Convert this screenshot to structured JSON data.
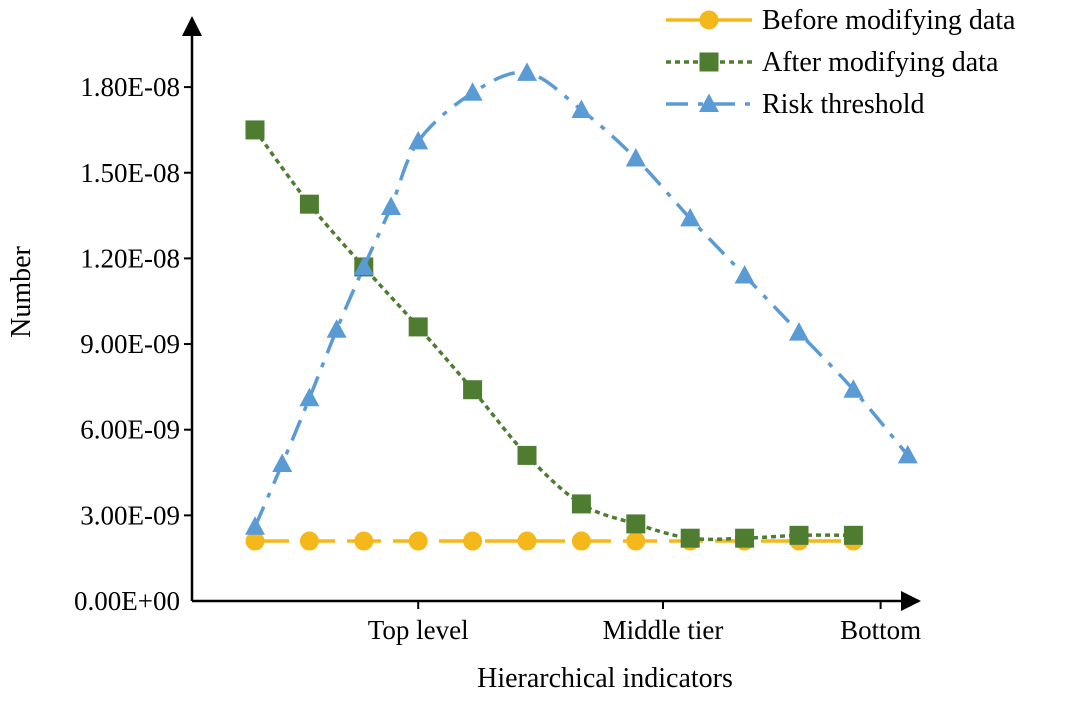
{
  "chart_data": {
    "type": "line",
    "xlabel": "Hierarchical indicators",
    "ylabel": "Number",
    "ylim": [
      0,
      2e-08
    ],
    "yticks": [
      {
        "value": 0,
        "label": "0.00E+00"
      },
      {
        "value": 3e-09,
        "label": "3.00E-09"
      },
      {
        "value": 6e-09,
        "label": "6.00E-09"
      },
      {
        "value": 9e-09,
        "label": "9.00E-09"
      },
      {
        "value": 1.2e-08,
        "label": "1.20E-08"
      },
      {
        "value": 1.5e-08,
        "label": "1.50E-08"
      },
      {
        "value": 1.8e-08,
        "label": "1.80E-08"
      }
    ],
    "xticks": [
      {
        "position": 3,
        "label": "Top level"
      },
      {
        "position": 7.5,
        "label": "Middle tier"
      },
      {
        "position": 11.5,
        "label": "Bottom"
      }
    ],
    "xlim": [
      -1,
      14
    ],
    "grid": false,
    "legend": "top-right",
    "series": [
      {
        "name": "Before modifying data",
        "color": "#F5B81A",
        "marker": "circle",
        "dash": "solid",
        "x": [
          0,
          1,
          2,
          3,
          4,
          5,
          6,
          7,
          8,
          9,
          10,
          11
        ],
        "values": [
          2.1e-09,
          2.1e-09,
          2.1e-09,
          2.1e-09,
          2.1e-09,
          2.1e-09,
          2.1e-09,
          2.1e-09,
          2.1e-09,
          2.1e-09,
          2.1e-09,
          2.1e-09
        ]
      },
      {
        "name": "After modifying data",
        "color": "#4E7D32",
        "marker": "square",
        "dash": "dotted",
        "x": [
          0,
          1,
          2,
          3,
          4,
          5,
          6,
          7,
          8,
          9,
          10,
          11
        ],
        "values": [
          1.65e-08,
          1.39e-08,
          1.17e-08,
          9.6e-09,
          7.4e-09,
          5.1e-09,
          3.4e-09,
          2.7e-09,
          2.2e-09,
          2.2e-09,
          2.3e-09,
          2.3e-09
        ]
      },
      {
        "name": "Risk threshold",
        "color": "#5B9BD5",
        "marker": "triangle",
        "dash": "dashdot",
        "x": [
          0,
          0.5,
          1,
          1.5,
          2,
          2.5,
          3,
          4,
          5,
          6,
          7,
          8,
          9,
          10,
          11,
          12
        ],
        "values": [
          2.6e-09,
          4.8e-09,
          7.1e-09,
          9.5e-09,
          1.17e-08,
          1.38e-08,
          1.61e-08,
          1.78e-08,
          1.85e-08,
          1.72e-08,
          1.55e-08,
          1.34e-08,
          1.14e-08,
          9.4e-09,
          7.4e-09,
          5.1e-09
        ]
      }
    ]
  }
}
